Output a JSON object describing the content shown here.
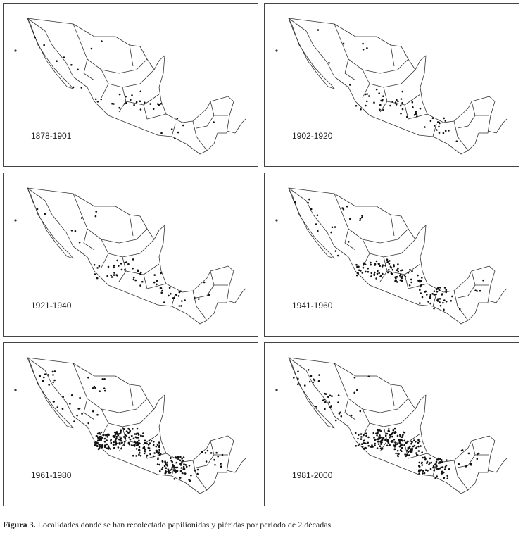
{
  "panels": [
    {
      "label": "1878-1901"
    },
    {
      "label": "1902-1920"
    },
    {
      "label": "1921-1940"
    },
    {
      "label": "1941-1960"
    },
    {
      "label": "1961-1980"
    },
    {
      "label": "1981-2000"
    }
  ],
  "caption": {
    "label": "Figura 3.",
    "text": "Localidades donde se han recolectado papiliónidas y piéridas por periodo de 2 décadas."
  }
}
